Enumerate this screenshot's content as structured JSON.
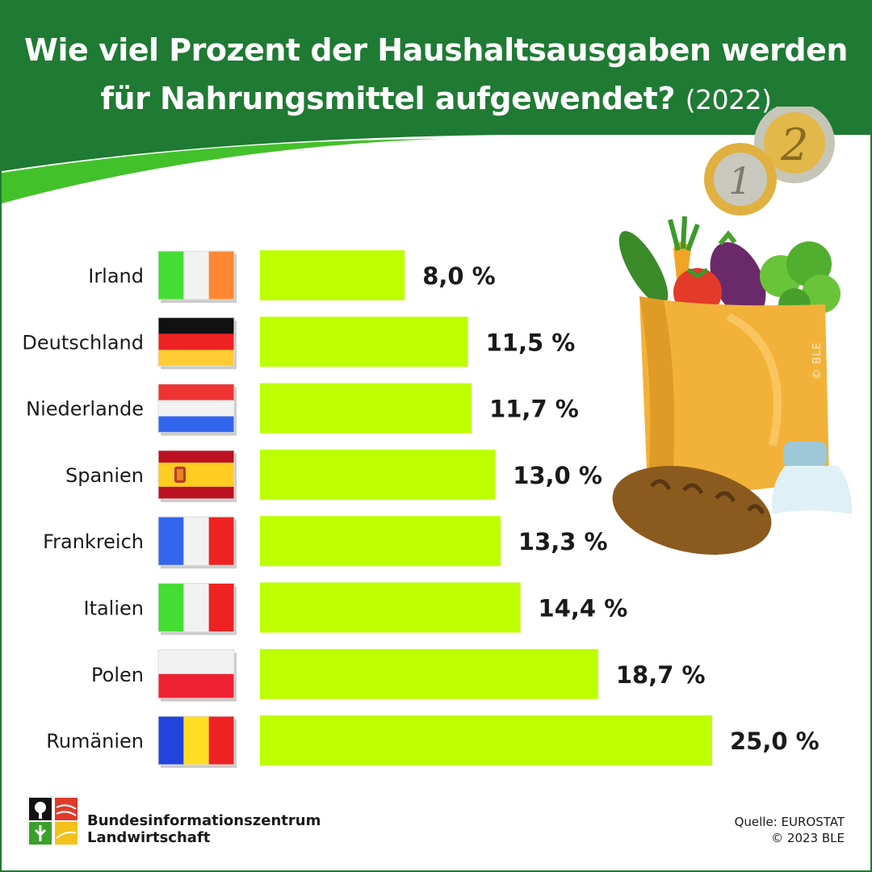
{
  "header": {
    "title_line1": "Wie viel Prozent der Haushaltsausgaben werden",
    "title_line2": "für Nahrungsmittel aufgewendet?",
    "title_year": "(2022)"
  },
  "colors": {
    "header_green": "#1f7a33",
    "swoosh_green": "#43c12b",
    "bar": "#bdff00"
  },
  "chart_data": {
    "type": "bar",
    "orientation": "horizontal",
    "categories": [
      "Irland",
      "Deutschland",
      "Niederlande",
      "Spanien",
      "Frankreich",
      "Italien",
      "Polen",
      "Rumänien"
    ],
    "values": [
      8.0,
      11.5,
      11.7,
      13.0,
      13.3,
      14.4,
      18.7,
      25.0
    ],
    "value_labels": [
      "8,0 %",
      "11,5 %",
      "11,7 %",
      "13,0 %",
      "13,3 %",
      "14,4 %",
      "18,7 %",
      "25,0 %"
    ],
    "grid": false,
    "legend": "none"
  },
  "flags": [
    {
      "country": "Irland",
      "type": "vertical",
      "colors": [
        "#44dd33",
        "#f2f2f2",
        "#ff8833"
      ]
    },
    {
      "country": "Deutschland",
      "type": "horizontal",
      "colors": [
        "#111111",
        "#ee2222",
        "#ffcc33"
      ]
    },
    {
      "country": "Niederlande",
      "type": "horizontal",
      "colors": [
        "#ee3333",
        "#f2f2f2",
        "#3366ee"
      ]
    },
    {
      "country": "Spanien",
      "type": "spain",
      "colors": [
        "#bb1122",
        "#ffcc22",
        "#bb1122"
      ]
    },
    {
      "country": "Frankreich",
      "type": "vertical",
      "colors": [
        "#3366ee",
        "#f2f2f2",
        "#ee2222"
      ]
    },
    {
      "country": "Italien",
      "type": "vertical",
      "colors": [
        "#44dd33",
        "#f2f2f2",
        "#ee2222"
      ]
    },
    {
      "country": "Polen",
      "type": "horizontal",
      "colors": [
        "#f2f2f2",
        "#ee2233"
      ]
    },
    {
      "country": "Rumänien",
      "type": "vertical",
      "colors": [
        "#2244dd",
        "#ffdd22",
        "#ee2222"
      ]
    }
  ],
  "decorations": {
    "coin_1_text": "1",
    "coin_2_text": "2",
    "watermark": "© BLE"
  },
  "footer": {
    "org_line1": "Bundesinformationszentrum",
    "org_line2": "Landwirtschaft",
    "source_line1": "Quelle: EUROSTAT",
    "source_line2": "© 2023 BLE"
  }
}
